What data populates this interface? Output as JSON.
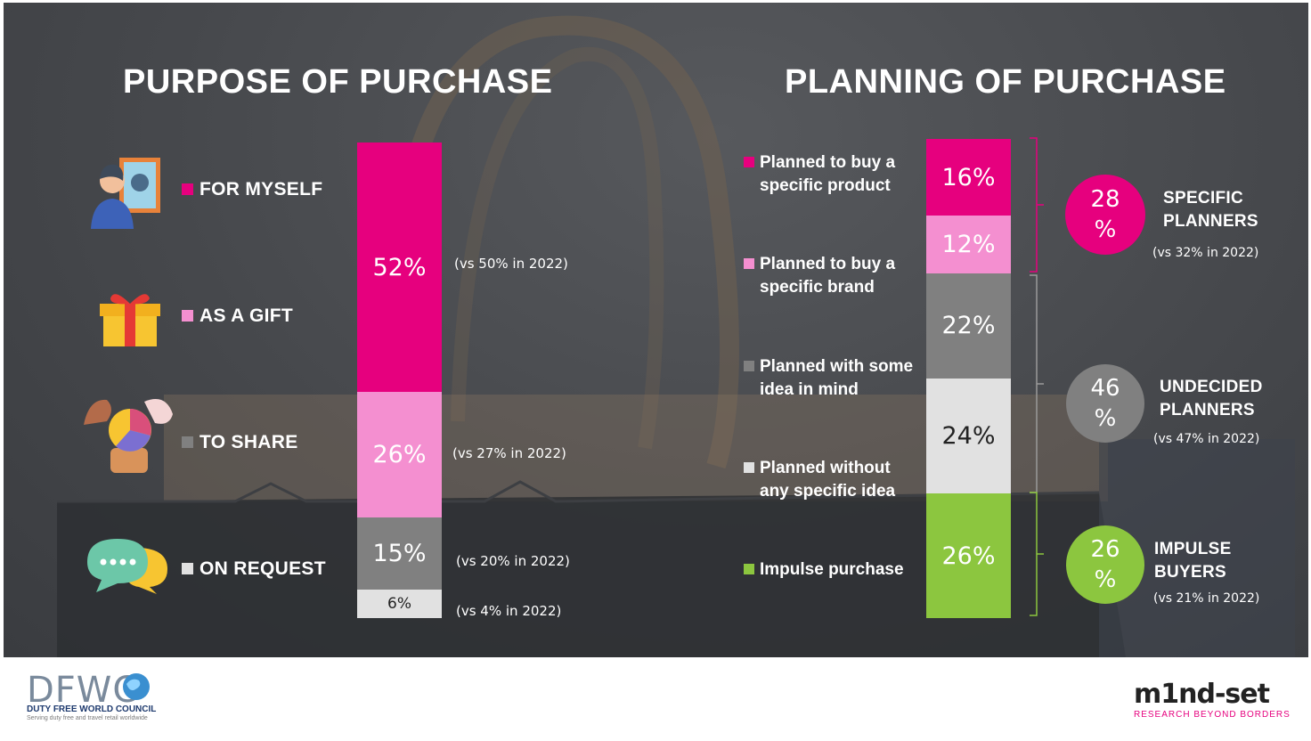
{
  "colors": {
    "magenta": "#e6007e",
    "pink": "#f48fd0",
    "grey": "#808080",
    "lightgrey": "#e1e1e1",
    "green": "#8cc63f"
  },
  "left": {
    "title": "PURPOSE OF PURCHASE",
    "categories": [
      {
        "label": "FOR MYSELF",
        "icon": "mirror-person-icon"
      },
      {
        "label": "AS A GIFT",
        "icon": "gift-box-icon"
      },
      {
        "label": "TO SHARE",
        "icon": "pie-sharing-icon"
      },
      {
        "label": "ON REQUEST",
        "icon": "speech-bubbles-icon"
      }
    ],
    "vs": [
      "(vs 50% in 2022)",
      "(vs 27% in 2022)",
      "(vs 20% in 2022)",
      "(vs 4% in 2022)"
    ]
  },
  "right": {
    "title": "PLANNING OF PURCHASE",
    "labels": [
      {
        "line1": "Planned to buy a",
        "line2": "specific product"
      },
      {
        "line1": "Planned to buy a",
        "line2": "specific brand"
      },
      {
        "line1": "Planned with some",
        "line2": "idea in mind"
      },
      {
        "line1": "Planned without",
        "line2": "any specific idea"
      },
      {
        "line1": "Impulse purchase",
        "line2": ""
      }
    ],
    "groups": [
      {
        "pct_top": "28",
        "pct_bottom": "%",
        "name1": "SPECIFIC",
        "name2": "PLANNERS",
        "vs": "(vs 32% in 2022)"
      },
      {
        "pct_top": "46",
        "pct_bottom": "%",
        "name1": "UNDECIDED",
        "name2": "PLANNERS",
        "vs": "(vs 47% in 2022)"
      },
      {
        "pct_top": "26",
        "pct_bottom": "%",
        "name1": "IMPULSE",
        "name2": "BUYERS",
        "vs": "(vs 21% in 2022)"
      }
    ]
  },
  "chart_data": [
    {
      "type": "bar",
      "stacked": true,
      "title": "PURPOSE OF PURCHASE",
      "categories": [
        "FOR MYSELF",
        "AS A GIFT",
        "TO SHARE",
        "ON REQUEST"
      ],
      "values": [
        52,
        26,
        15,
        6
      ],
      "data_labels": [
        "52%",
        "26%",
        "15%",
        "6%"
      ],
      "colors": [
        "#e6007e",
        "#f48fd0",
        "#808080",
        "#e1e1e1"
      ]
    },
    {
      "type": "bar",
      "stacked": true,
      "title": "PLANNING OF PURCHASE",
      "categories": [
        "Planned to buy a specific product",
        "Planned to buy a specific brand",
        "Planned with some idea in mind",
        "Planned without any specific idea",
        "Impulse purchase"
      ],
      "values": [
        16,
        12,
        22,
        24,
        26
      ],
      "data_labels": [
        "16%",
        "12%",
        "22%",
        "24%",
        "26%"
      ],
      "colors": [
        "#e6007e",
        "#f48fd0",
        "#808080",
        "#e1e1e1",
        "#8cc63f"
      ]
    }
  ],
  "footer": {
    "dfwc_mark": "DFWC",
    "dfwc_name": "DUTY FREE WORLD COUNCIL",
    "dfwc_tagline": "Serving duty free and travel retail worldwide",
    "mindset_logo": "m1nd-set",
    "mindset_tagline": "RESEARCH BEYOND BORDERS"
  }
}
